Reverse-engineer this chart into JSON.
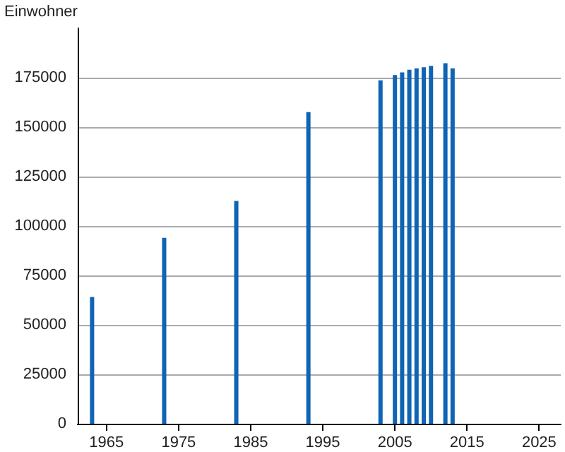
{
  "chart_data": {
    "type": "bar",
    "ylabel": "Einwohner",
    "x": [
      1963,
      1973,
      1983,
      1993,
      2003,
      2005,
      2006,
      2007,
      2008,
      2009,
      2010,
      2012,
      2013
    ],
    "values": [
      64100,
      94000,
      112700,
      157600,
      173700,
      176300,
      177700,
      179000,
      179700,
      180300,
      181000,
      182300,
      179700
    ],
    "color": "#0f64b4",
    "xlim": [
      1961,
      2028
    ],
    "xticks": [
      1965,
      1975,
      1985,
      1995,
      2005,
      2015,
      2025
    ],
    "ylim": [
      0,
      200000
    ],
    "yticks": [
      0,
      25000,
      50000,
      75000,
      100000,
      125000,
      150000,
      175000
    ],
    "grid": "y"
  }
}
